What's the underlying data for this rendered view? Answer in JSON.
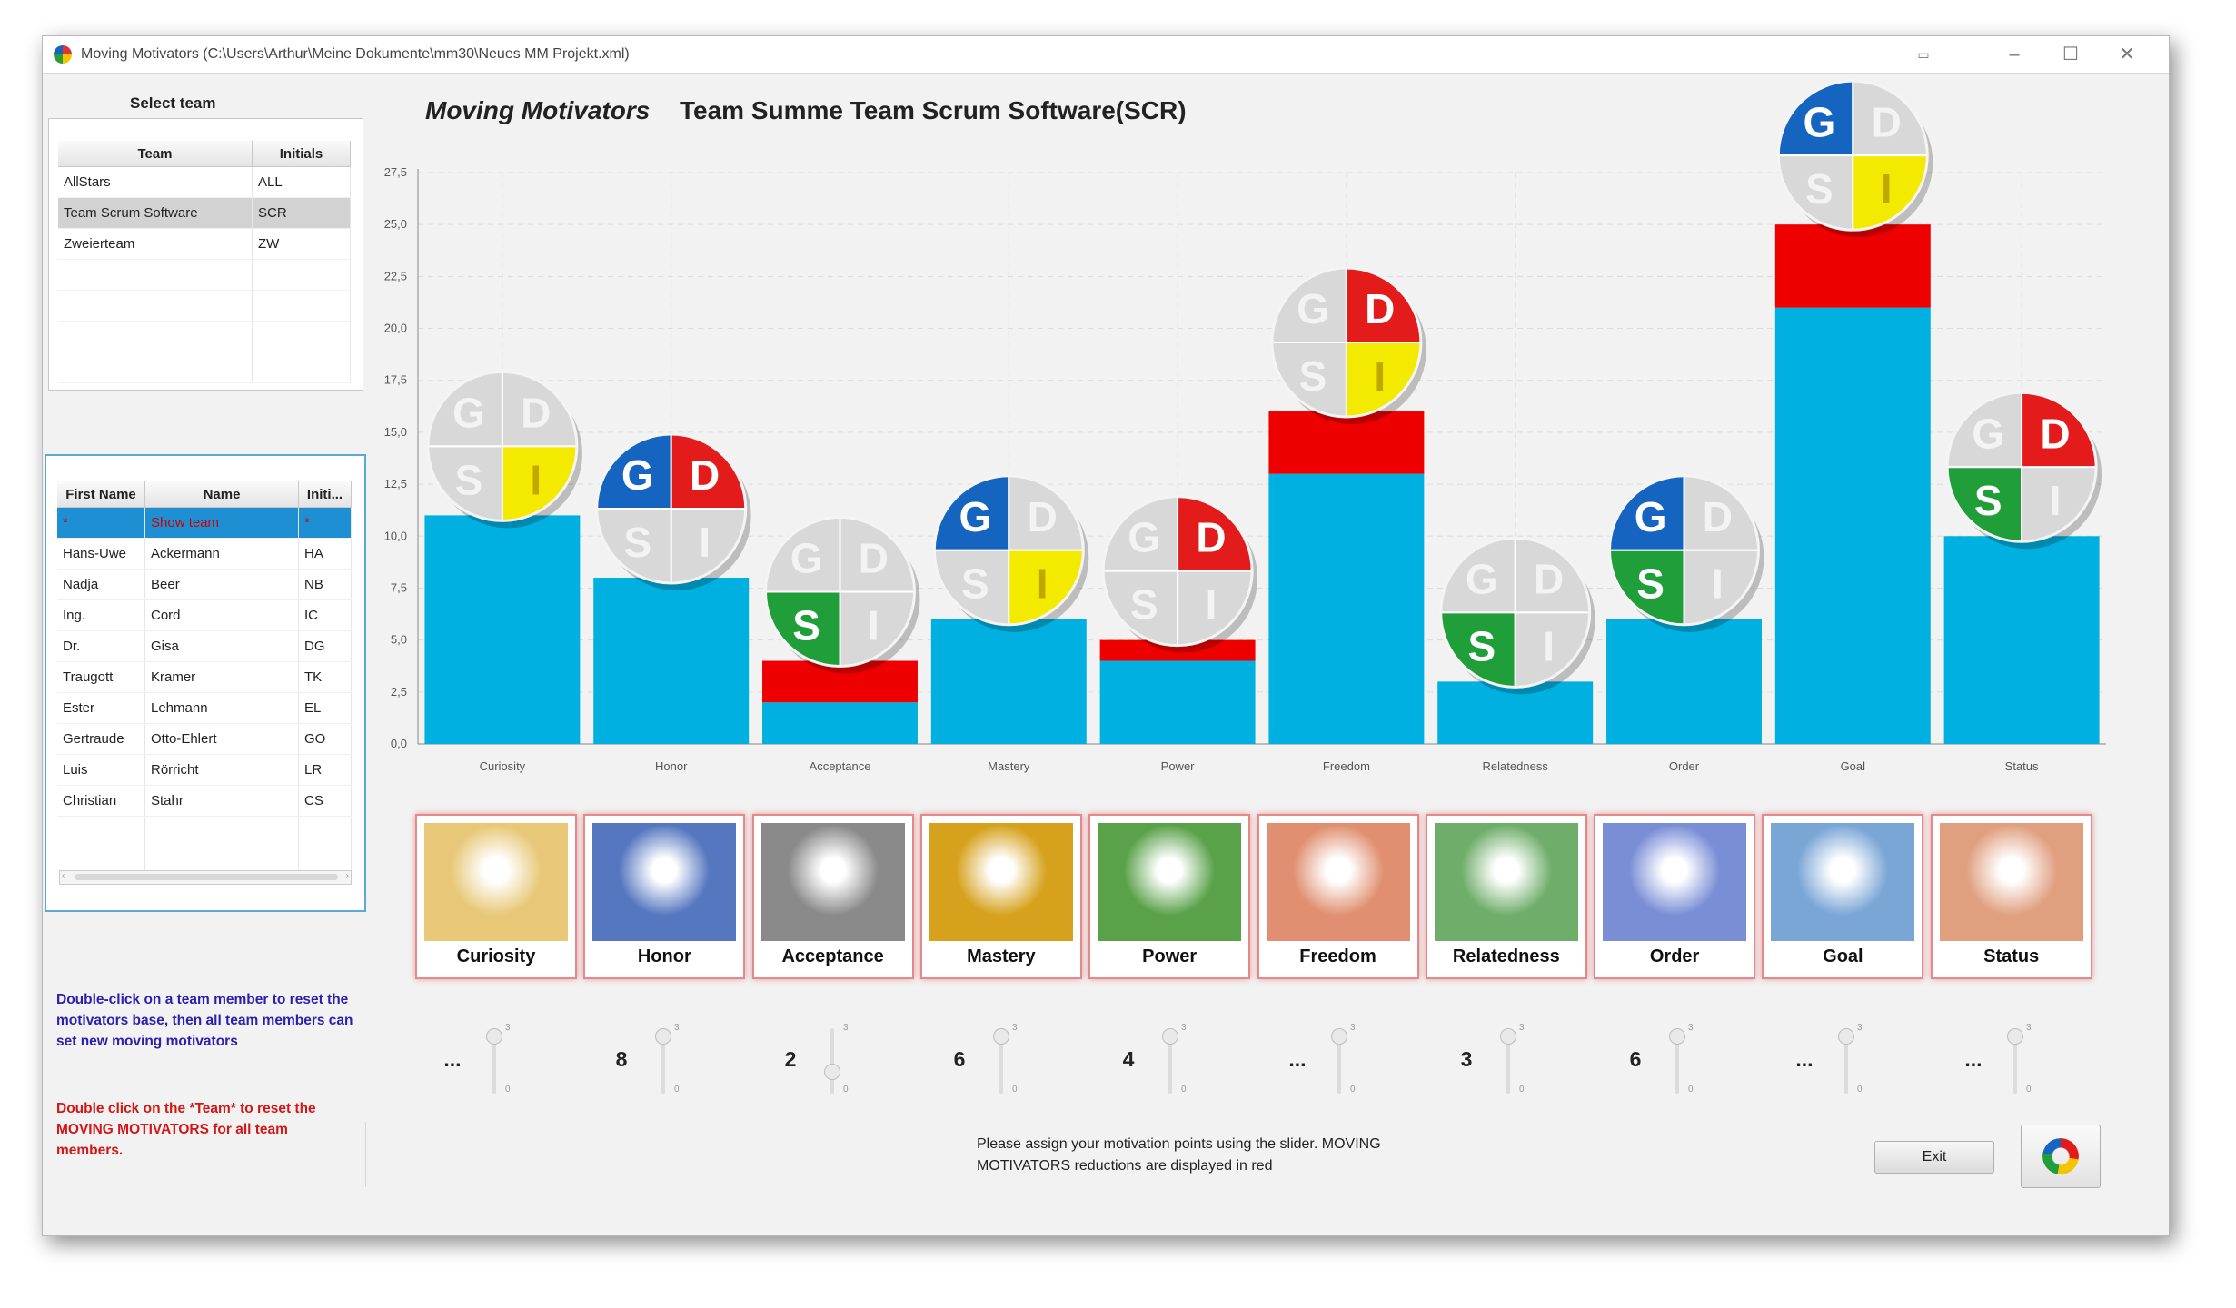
{
  "window": {
    "title": "Moving Motivators (C:\\Users\\Arthur\\Meine Dokumente\\mm30\\Neues MM Projekt.xml)"
  },
  "sidebar": {
    "select_team_label": "Select team",
    "team_table": {
      "headers": [
        "Team",
        "Initials"
      ],
      "rows": [
        {
          "team": "AllStars",
          "initials": "ALL"
        },
        {
          "team": "Team Scrum Software",
          "initials": "SCR"
        },
        {
          "team": "Zweierteam",
          "initials": "ZW"
        }
      ],
      "selected_index": 1
    },
    "member_table": {
      "headers": [
        "First Name",
        "Name",
        "Initi..."
      ],
      "rows": [
        {
          "first": "*",
          "name": "Show team",
          "init": "*"
        },
        {
          "first": "Hans-Uwe",
          "name": "Ackermann",
          "init": "HA"
        },
        {
          "first": "Nadja",
          "name": "Beer",
          "init": "NB"
        },
        {
          "first": "Ing.",
          "name": "Cord",
          "init": "IC"
        },
        {
          "first": "Dr.",
          "name": "Gisa",
          "init": "DG"
        },
        {
          "first": "Traugott",
          "name": "Kramer",
          "init": "TK"
        },
        {
          "first": "Ester",
          "name": "Lehmann",
          "init": "EL"
        },
        {
          "first": "Gertraude",
          "name": "Otto-Ehlert",
          "init": "GO"
        },
        {
          "first": "Luis",
          "name": "Rörricht",
          "init": "LR"
        },
        {
          "first": "Christian",
          "name": "Stahr",
          "init": "CS"
        }
      ],
      "selected_index": 0
    },
    "hint_blue": "Double-click on a team member to reset the motivators base, then all team members can set new moving motivators",
    "hint_red": "Double click on the *Team* to reset the MOVING MOTIVATORS for all team members."
  },
  "header": {
    "app_title": "Moving Motivators",
    "team_title": "Team Summe Team Scrum Software(SCR)"
  },
  "chart_data": {
    "type": "bar",
    "stacked": true,
    "categories": [
      "Curiosity",
      "Honor",
      "Acceptance",
      "Mastery",
      "Power",
      "Freedom",
      "Relatedness",
      "Order",
      "Goal",
      "Status"
    ],
    "series": [
      {
        "color": "#00b0e0",
        "values": [
          11,
          8,
          2,
          6,
          4,
          13,
          3,
          6,
          21,
          10
        ]
      },
      {
        "color": "#ee0000",
        "values": [
          0,
          0,
          2,
          0,
          1,
          3,
          0,
          0,
          4,
          0
        ]
      }
    ],
    "ylim": [
      0,
      27.5
    ],
    "yticks": [
      "0,0",
      "2,5",
      "5,0",
      "7,5",
      "10,0",
      "12,5",
      "15,0",
      "17,5",
      "20,0",
      "22,5",
      "25,0",
      "27,5"
    ],
    "grid": true,
    "quadrant_badges": [
      {
        "G": false,
        "D": false,
        "S": false,
        "I": true
      },
      {
        "G": true,
        "D": true,
        "S": false,
        "I": false
      },
      {
        "G": false,
        "D": false,
        "S": true,
        "I": false
      },
      {
        "G": true,
        "D": false,
        "S": false,
        "I": true
      },
      {
        "G": false,
        "D": true,
        "S": false,
        "I": false
      },
      {
        "G": false,
        "D": true,
        "S": false,
        "I": true
      },
      {
        "G": false,
        "D": false,
        "S": true,
        "I": false
      },
      {
        "G": true,
        "D": false,
        "S": true,
        "I": false
      },
      {
        "G": true,
        "D": false,
        "S": false,
        "I": true
      },
      {
        "G": false,
        "D": true,
        "S": true,
        "I": false
      }
    ],
    "quadrant_letters": [
      "G",
      "D",
      "S",
      "I"
    ],
    "quadrant_colors": {
      "G": "#1565c0",
      "D": "#e41b1b",
      "S": "#1f9e3a",
      "I": "#f4ea00",
      "off": "#d8d8d8",
      "off_text": "#f3f3f3"
    }
  },
  "cards": [
    {
      "label": "Curiosity",
      "color": "#e8c878"
    },
    {
      "label": "Honor",
      "color": "#5577c0"
    },
    {
      "label": "Acceptance",
      "color": "#8a8a8a"
    },
    {
      "label": "Mastery",
      "color": "#d6a21e"
    },
    {
      "label": "Power",
      "color": "#5aa24a"
    },
    {
      "label": "Freedom",
      "color": "#e09070"
    },
    {
      "label": "Relatedness",
      "color": "#6fae6a"
    },
    {
      "label": "Order",
      "color": "#7a8ed6"
    },
    {
      "label": "Goal",
      "color": "#7aa6d6"
    },
    {
      "label": "Status",
      "color": "#e0a080"
    }
  ],
  "sliders": {
    "values": [
      "...",
      "8",
      "2",
      "6",
      "4",
      "...",
      "3",
      "6",
      "...",
      "..."
    ],
    "levels": [
      1,
      1,
      0.3,
      1,
      1,
      1,
      1,
      1,
      1,
      1
    ],
    "max_label": "3",
    "min_label": "0"
  },
  "footer": {
    "info": "Please assign your motivation points using the slider. MOVING MOTIVATORS reductions are displayed in red",
    "exit_label": "Exit"
  }
}
